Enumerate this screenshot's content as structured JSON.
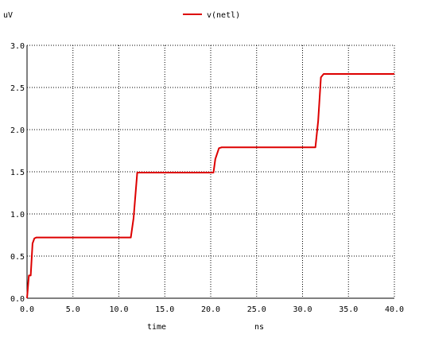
{
  "chart_data": {
    "type": "line",
    "y_unit_label": "uV",
    "xlabel": "time",
    "x_unit_label": "ns",
    "xlim": [
      0,
      40
    ],
    "ylim": [
      0,
      3
    ],
    "x_ticks": [
      0,
      5,
      10,
      15,
      20,
      25,
      30,
      35,
      40
    ],
    "y_ticks": [
      0,
      0.5,
      1.0,
      1.5,
      2.0,
      2.5,
      3.0
    ],
    "x_tick_labels": [
      "0.0",
      "5.0",
      "10.0",
      "15.0",
      "20.0",
      "25.0",
      "30.0",
      "35.0",
      "40.0"
    ],
    "y_tick_labels": [
      "0.0",
      "0.5",
      "1.0",
      "1.5",
      "2.0",
      "2.5",
      "3.0"
    ],
    "grid": true,
    "legend_position": "top-center",
    "series": [
      {
        "name": "v(netl)",
        "color": "#dd0000",
        "x": [
          0.0,
          0.2,
          0.4,
          0.6,
          0.8,
          1.0,
          11.3,
          11.6,
          12.0,
          12.4,
          20.3,
          20.5,
          20.9,
          21.2,
          31.4,
          31.7,
          32.0,
          32.3,
          40.0
        ],
        "y": [
          0.0,
          0.27,
          0.27,
          0.65,
          0.71,
          0.72,
          0.72,
          0.95,
          1.49,
          1.49,
          1.49,
          1.65,
          1.78,
          1.79,
          1.79,
          2.1,
          2.62,
          2.66,
          2.66
        ]
      }
    ]
  }
}
